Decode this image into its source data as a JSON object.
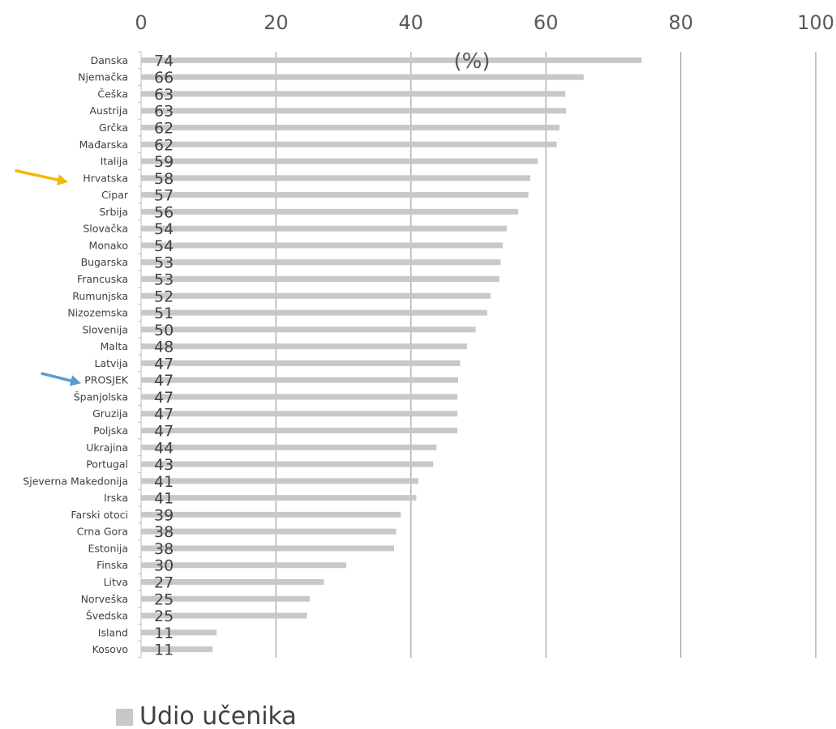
{
  "chart_data": {
    "type": "bar",
    "orientation": "horizontal",
    "categories": [
      "Danska",
      "Njemačka",
      "Češka",
      "Austrija",
      "Grčka",
      "Mađarska",
      "Italija",
      "Hrvatska",
      "Cipar",
      "Srbija",
      "Slovačka",
      "Monako",
      "Bugarska",
      "Francuska",
      "Rumunjska",
      "Nizozemska",
      "Slovenija",
      "Malta",
      "Latvija",
      "PROSJEK",
      "Španjolska",
      "Gruzija",
      "Poljska",
      "Ukrajina",
      "Portugal",
      "Sjeverna Makedonija",
      "Irska",
      "Farski otoci",
      "Crna Gora",
      "Estonija",
      "Finska",
      "Litva",
      "Norveška",
      "Švedska",
      "Island",
      "Kosovo"
    ],
    "series": [
      {
        "name": "Udio učenika",
        "color": "#c8c8c8",
        "values": [
          74.2,
          65.6,
          62.9,
          63.0,
          62.0,
          61.6,
          58.8,
          57.7,
          57.4,
          55.9,
          54.2,
          53.6,
          53.3,
          53.1,
          51.8,
          51.3,
          49.6,
          48.3,
          47.3,
          47.0,
          46.9,
          46.9,
          46.9,
          43.8,
          43.3,
          41.1,
          40.8,
          38.5,
          37.8,
          37.5,
          30.4,
          27.1,
          25.0,
          24.6,
          11.2,
          10.6
        ],
        "labels": [
          "74",
          "66",
          "63",
          "63",
          "62",
          "62",
          "59",
          "58",
          "57",
          "56",
          "54",
          "54",
          "53",
          "53",
          "52",
          "51",
          "50",
          "48",
          "47",
          "47",
          "47",
          "47",
          "47",
          "44",
          "43",
          "41",
          "41",
          "39",
          "38",
          "38",
          "30",
          "27",
          "25",
          "25",
          "11",
          "11"
        ]
      }
    ],
    "axis_unit": "(%)",
    "xlim": [
      0,
      100
    ],
    "x_ticks": [
      "0",
      "20",
      "40",
      "60",
      "80",
      "100"
    ],
    "tick_values": [
      0,
      20,
      40,
      60,
      80,
      100
    ],
    "grid": true,
    "legend_position": "bottom-left",
    "highlights": [
      {
        "category": "Hrvatska",
        "arrow_color": "#f5b800"
      },
      {
        "category": "PROSJEK",
        "arrow_color": "#5b9bd5"
      }
    ],
    "gridline_color": "#a6a6a6"
  }
}
